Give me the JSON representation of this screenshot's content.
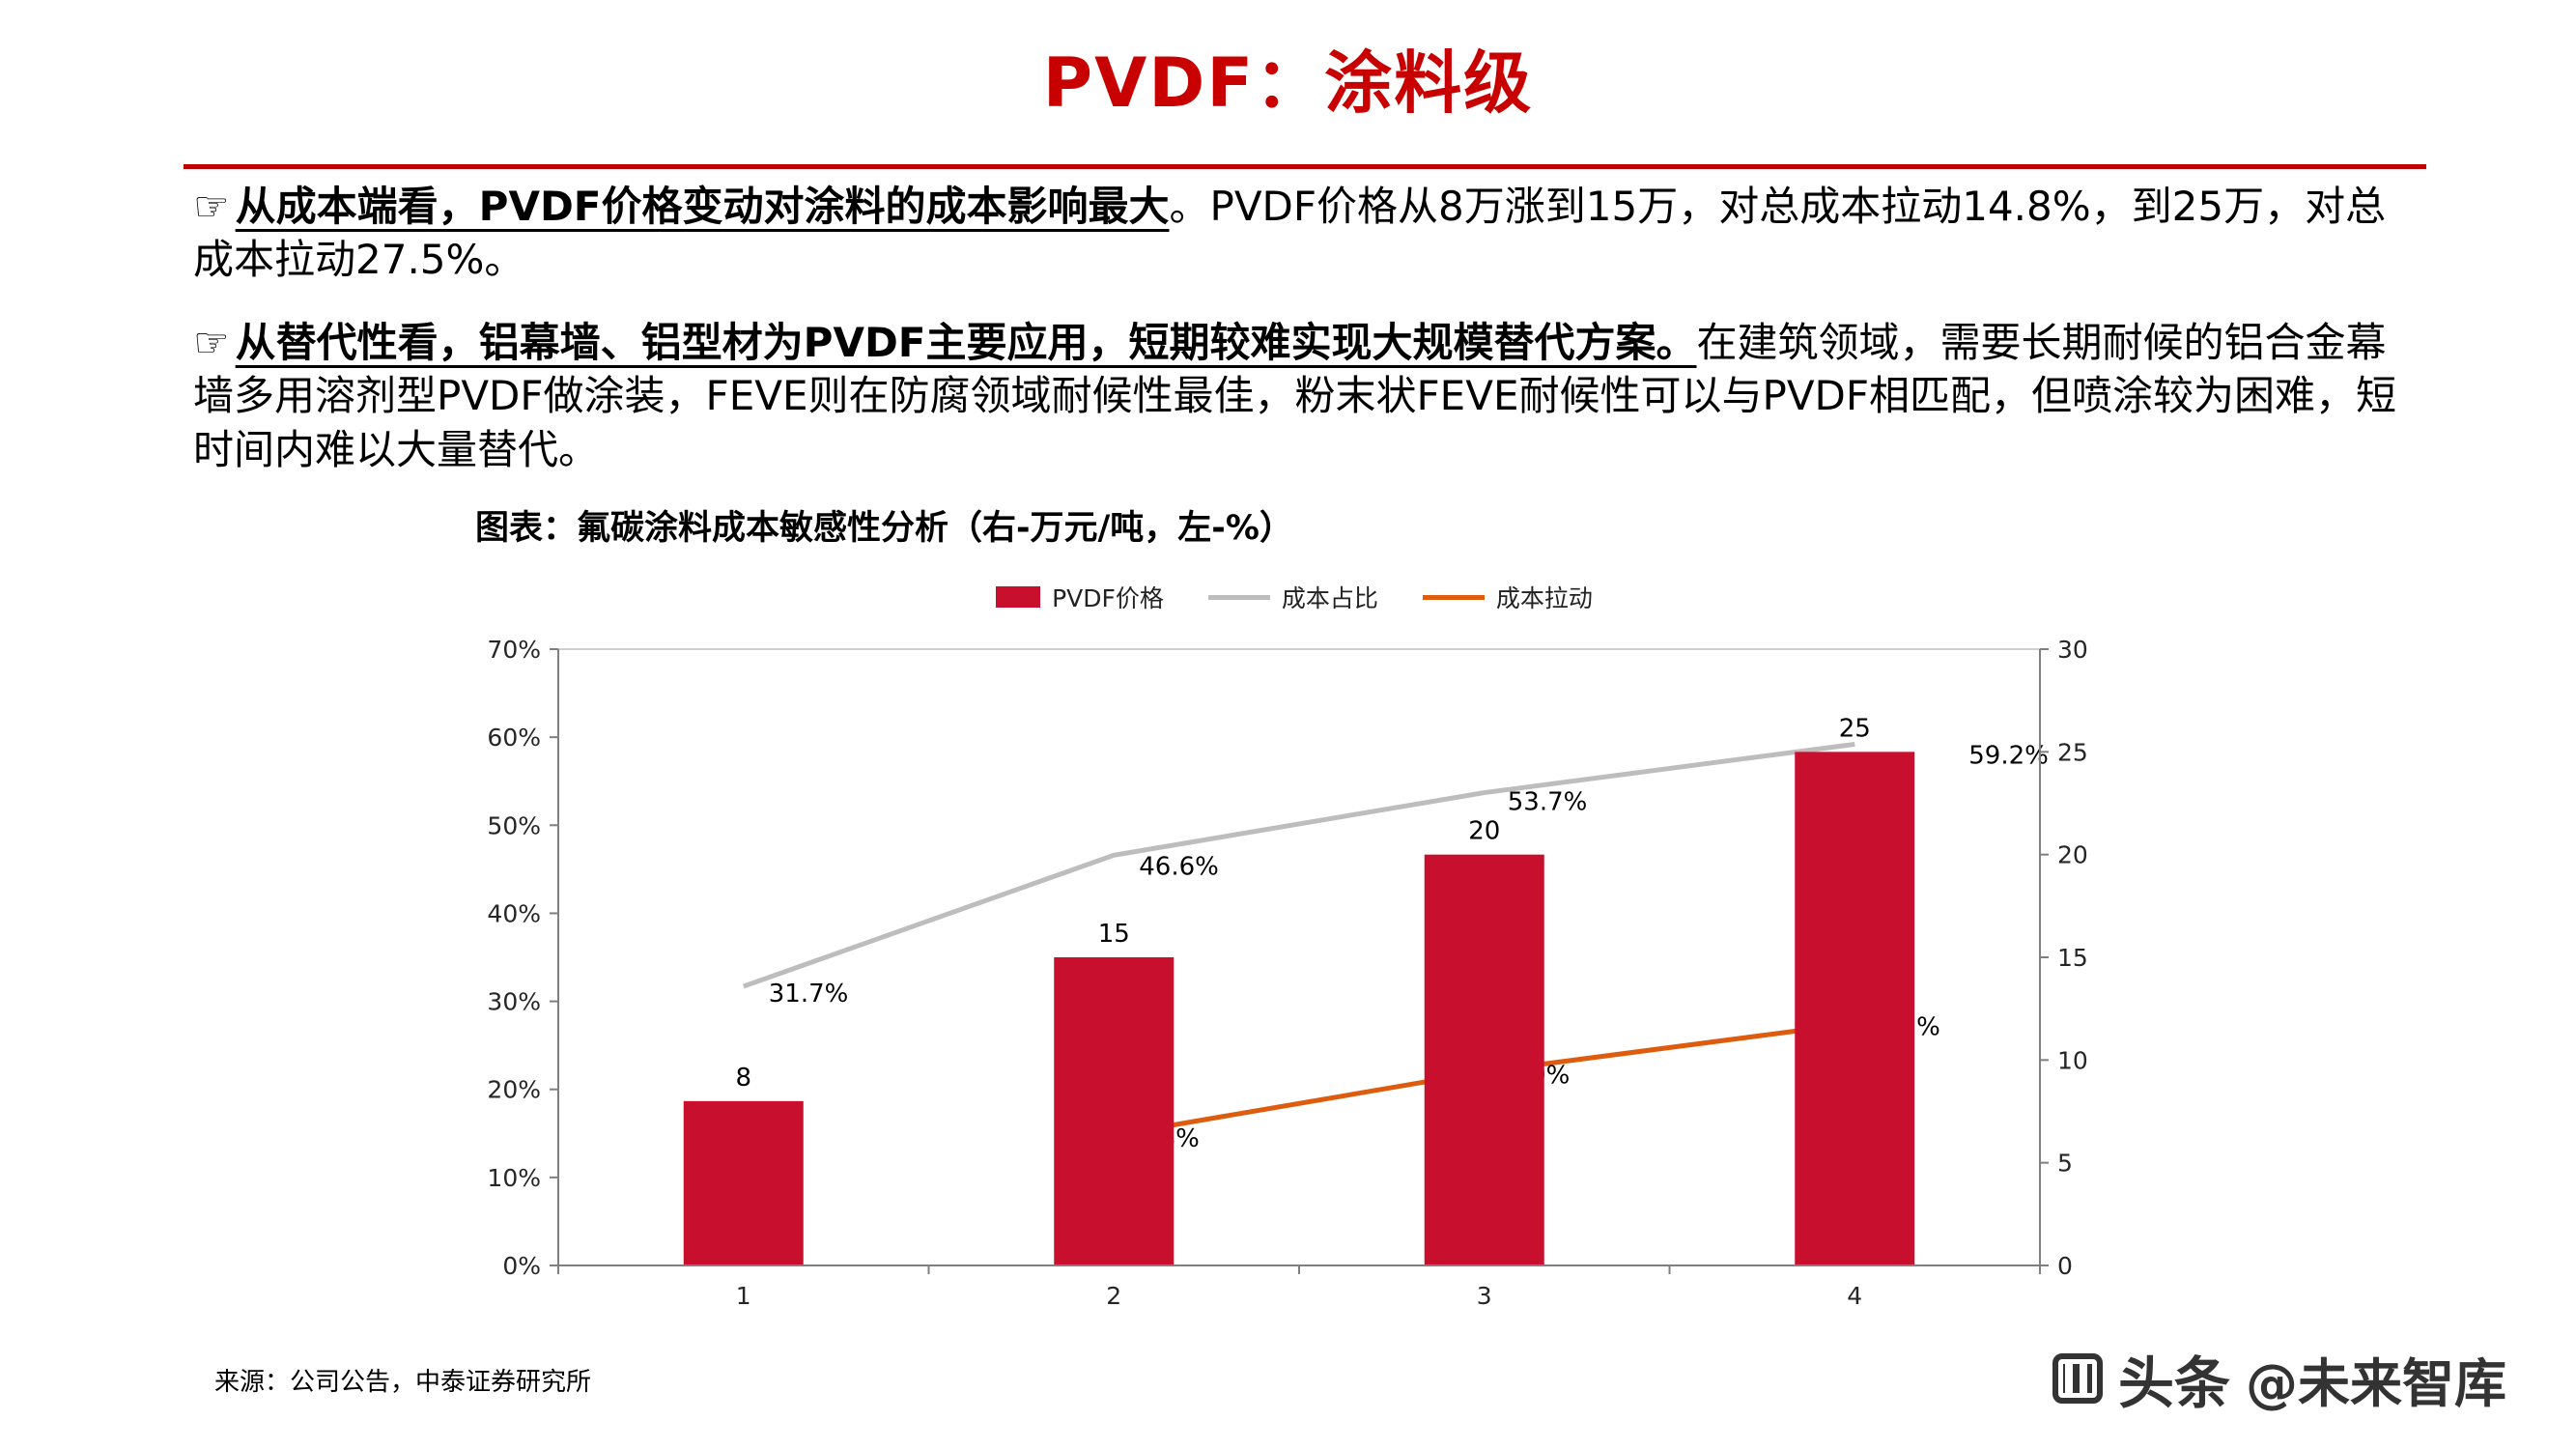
{
  "header": {
    "title": "PVDF：涂料级"
  },
  "bullets": [
    {
      "marker": "☞",
      "lead": "从成本端看，PVDF价格变动对涂料的成本影响最大",
      "rest": "。PVDF价格从8万涨到15万，对总成本拉动14.8%，到25万，对总成本拉动27.5%。"
    },
    {
      "marker": "☞",
      "lead": "从替代性看，铝幕墙、铝型材为PVDF主要应用，短期较难实现大规模替代方案。",
      "rest": "在建筑领域，需要长期耐候的铝合金幕墙多用溶剂型PVDF做涂装，FEVE则在防腐领域耐候性最佳，粉末状FEVE耐候性可以与PVDF相匹配，但喷涂较为困难，短时间内难以大量替代。"
    }
  ],
  "chart_data": {
    "type": "combo-bar-line",
    "title": "图表：氟碳涂料成本敏感性分析（右-万元/吨，左-%）",
    "categories": [
      "1",
      "2",
      "3",
      "4"
    ],
    "series": [
      {
        "name": "PVDF价格",
        "type": "bar",
        "axis": "right",
        "color": "#c8102e",
        "values": [
          8,
          15,
          20,
          25
        ],
        "labels": [
          "8",
          "15",
          "20",
          "25"
        ]
      },
      {
        "name": "成本占比",
        "type": "line",
        "axis": "left",
        "color": "#bdbdbd",
        "values": [
          31.7,
          46.6,
          53.7,
          59.2
        ],
        "labels": [
          "31.7%",
          "46.6%",
          "53.7%",
          "59.2%"
        ]
      },
      {
        "name": "成本拉动",
        "type": "line",
        "axis": "left",
        "color": "#dd5c0e",
        "values": [
          null,
          14.8,
          22.0,
          27.5
        ],
        "labels": [
          "",
          "14.8%",
          "22.0%",
          "27.5%"
        ]
      }
    ],
    "left_axis": {
      "min": 0,
      "max": 70,
      "tick_values": [
        70,
        60,
        50,
        40,
        30,
        20,
        10,
        0
      ],
      "ticks": [
        "70%",
        "60%",
        "50%",
        "40%",
        "30%",
        "20%",
        "10%",
        "0%"
      ]
    },
    "right_axis": {
      "min": 0,
      "max": 30,
      "tick_values": [
        30,
        25,
        20,
        15,
        10,
        5,
        0
      ],
      "ticks": [
        "30",
        "25",
        "20",
        "15",
        "10",
        "5",
        "0"
      ]
    },
    "legend_position": "top",
    "grid": "off"
  },
  "footer": {
    "source": "来源：公司公告，中泰证券研究所",
    "watermark_brand": "头条",
    "watermark_handle": "@未来智库"
  },
  "colors": {
    "accent_red": "#c00000",
    "bar_red": "#c8102e",
    "grey_line": "#bdbdbd",
    "orange_line": "#dd5c0e"
  }
}
